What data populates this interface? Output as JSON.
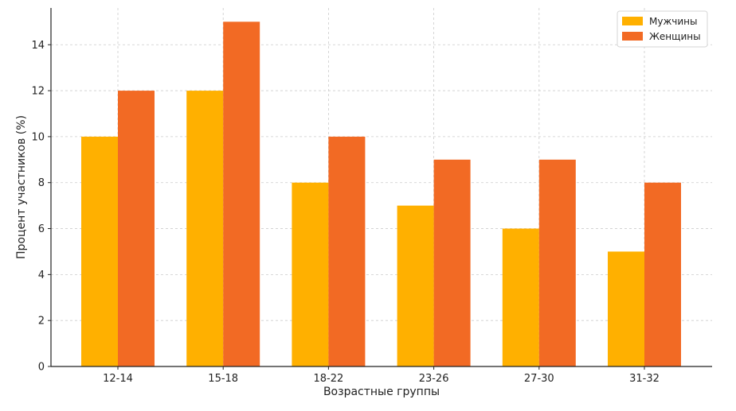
{
  "chart_data": {
    "type": "bar",
    "title": "",
    "xlabel": "Возрастные группы",
    "ylabel": "Процент участников (%)",
    "categories": [
      "12-14",
      "15-18",
      "18-22",
      "23-26",
      "27-30",
      "31-32"
    ],
    "series": [
      {
        "name": "Мужчины",
        "values": [
          10,
          12,
          8,
          7,
          6,
          5
        ],
        "color": "#FFB000"
      },
      {
        "name": "Женщины",
        "values": [
          12,
          15,
          10,
          9,
          9,
          8
        ],
        "color": "#F26A24"
      }
    ],
    "ylim": [
      0,
      15.6
    ],
    "yticks": [
      0,
      2,
      4,
      6,
      8,
      10,
      12,
      14
    ],
    "grid": true,
    "legend_position": "top-right"
  }
}
